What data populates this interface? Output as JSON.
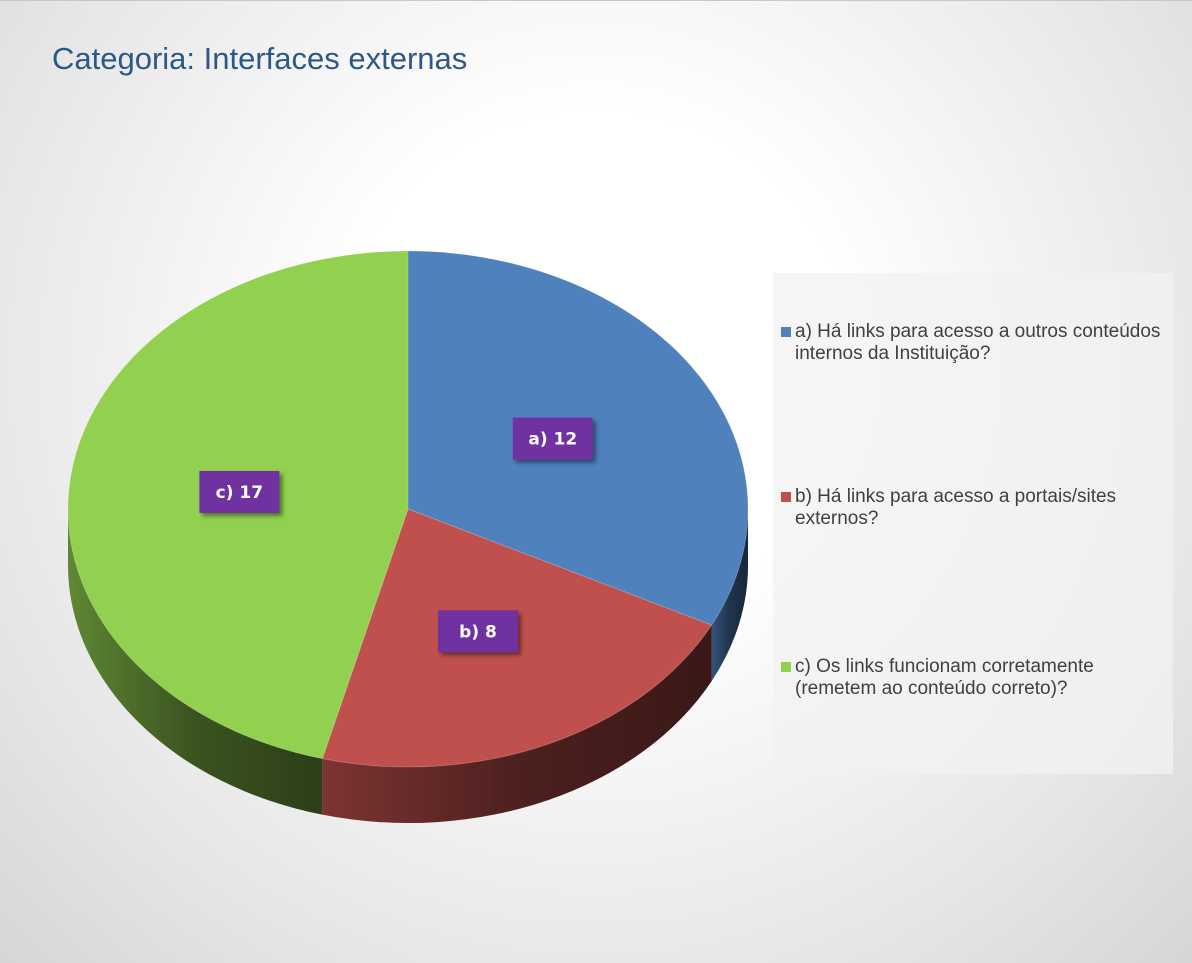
{
  "chart_data": {
    "type": "pie3d",
    "title": "Categoria: Interfaces externas",
    "categories": [
      "a) Há links para acesso a outros conteúdos internos da Instituição?",
      "b) Há links para acesso a portais/sites externos?",
      "c) Os links funcionam corretamente (remetem ao conteúdo correto)?"
    ],
    "values": [
      12,
      8,
      17
    ],
    "value_labels": [
      "a) 12",
      "b) 8",
      "c) 17"
    ],
    "colors": [
      "#4f81bd",
      "#c0504d",
      "#92d050"
    ],
    "legend": "right"
  }
}
